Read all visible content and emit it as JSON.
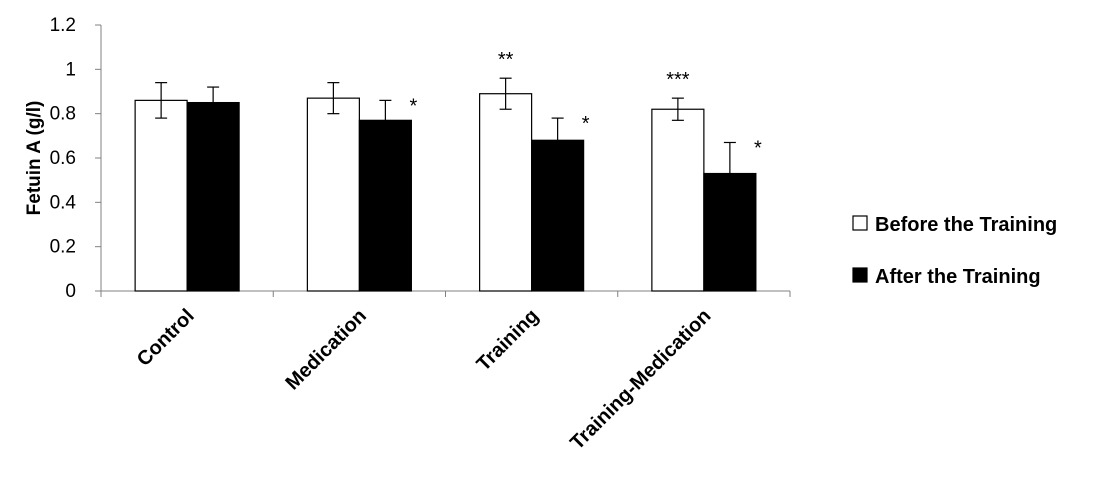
{
  "chart_data": {
    "type": "bar",
    "categories": [
      "Control",
      "Medication",
      "Training",
      "Training-Medication"
    ],
    "series": [
      {
        "name": "Before the Training",
        "color": "#ffffff",
        "values": [
          0.86,
          0.87,
          0.89,
          0.82
        ],
        "errors": [
          0.08,
          0.07,
          0.07,
          0.05
        ],
        "annotations": [
          "",
          "",
          "**",
          "***"
        ]
      },
      {
        "name": "After the Training",
        "color": "#000000",
        "values": [
          0.85,
          0.77,
          0.68,
          0.53
        ],
        "errors": [
          0.07,
          0.09,
          0.1,
          0.14
        ],
        "annotations": [
          "",
          "*",
          "*",
          "*"
        ]
      }
    ],
    "title": "",
    "xlabel": "",
    "ylabel": "Fetuin A (g/l)",
    "ylim": [
      0,
      1.2
    ],
    "yticks": [
      "0",
      "0.2",
      "0.4",
      "0.6",
      "0.8",
      "1",
      "1.2"
    ],
    "grid": false,
    "legend_position": "right"
  }
}
